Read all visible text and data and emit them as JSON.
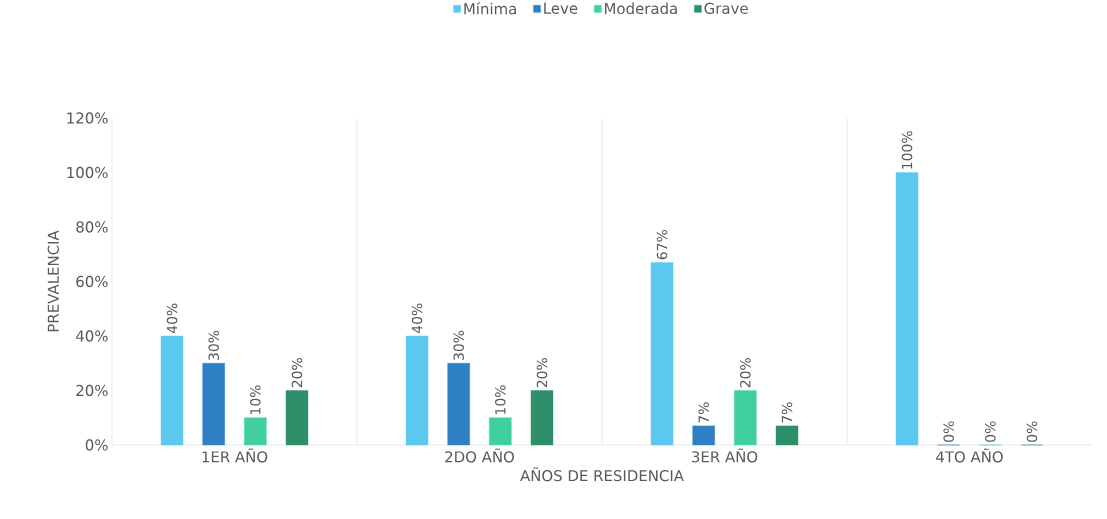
{
  "chart_data": {
    "type": "bar",
    "xlabel": "AÑOS DE RESIDENCIA",
    "ylabel": "PREVALENCIA",
    "categories": [
      "1ER AÑO",
      "2DO AÑO",
      "3ER AÑO",
      "4TO AÑO"
    ],
    "series": [
      {
        "name": "Mínima",
        "color": "#5bc8ef",
        "values": [
          40,
          40,
          67,
          100
        ],
        "value_labels": [
          "40%",
          "40%",
          "67%",
          "100%"
        ]
      },
      {
        "name": "Leve",
        "color": "#2e7fc4",
        "values": [
          30,
          30,
          7,
          0
        ],
        "value_labels": [
          "30%",
          "30%",
          "7%",
          "0%"
        ]
      },
      {
        "name": "Moderada",
        "color": "#40d0a0",
        "values": [
          10,
          10,
          20,
          0
        ],
        "value_labels": [
          "10%",
          "10%",
          "20%",
          "0%"
        ]
      },
      {
        "name": "Grave",
        "color": "#2e8f6a",
        "values": [
          20,
          20,
          7,
          0
        ],
        "value_labels": [
          "20%",
          "20%",
          "7%",
          "0%"
        ]
      }
    ],
    "ylim": [
      0,
      120
    ],
    "yticks": [
      {
        "value": 0,
        "label": "0%"
      },
      {
        "value": 20,
        "label": "20%"
      },
      {
        "value": 40,
        "label": "40%"
      },
      {
        "value": 60,
        "label": "60%"
      },
      {
        "value": 80,
        "label": "80%"
      },
      {
        "value": 100,
        "label": "100%"
      },
      {
        "value": 120,
        "label": "120%"
      }
    ],
    "legend": "top"
  }
}
